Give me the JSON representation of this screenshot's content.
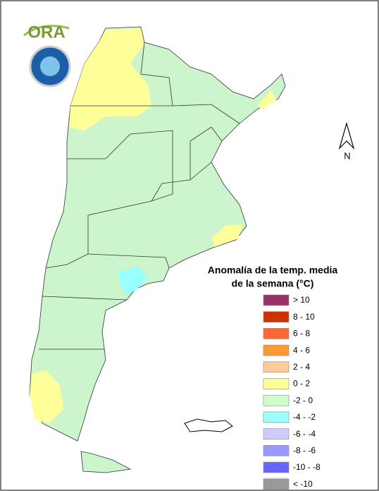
{
  "logo": {
    "text": "ORA"
  },
  "north_arrow": {
    "label": "N"
  },
  "legend": {
    "title": [
      "Anomalía de la temp. media",
      "de la semana (°C)"
    ],
    "items": [
      {
        "label": "> 10",
        "color": "#993366"
      },
      {
        "label": "8 - 10",
        "color": "#cc3300"
      },
      {
        "label": "6 - 8",
        "color": "#ff6633"
      },
      {
        "label": "4 - 6",
        "color": "#ff9933"
      },
      {
        "label": "2 - 4",
        "color": "#ffcc99"
      },
      {
        "label": "0 - 2",
        "color": "#ffff99"
      },
      {
        "label": "-2 - 0",
        "color": "#ccffcc"
      },
      {
        "label": "-4 - -2",
        "color": "#99ffff"
      },
      {
        "label": "-6 - -4",
        "color": "#ccccff"
      },
      {
        "label": "-8 - -6",
        "color": "#9999ff"
      },
      {
        "label": "-10 - -8",
        "color": "#6666ff"
      },
      {
        "label": "< -10",
        "color": "#999999"
      }
    ]
  }
}
